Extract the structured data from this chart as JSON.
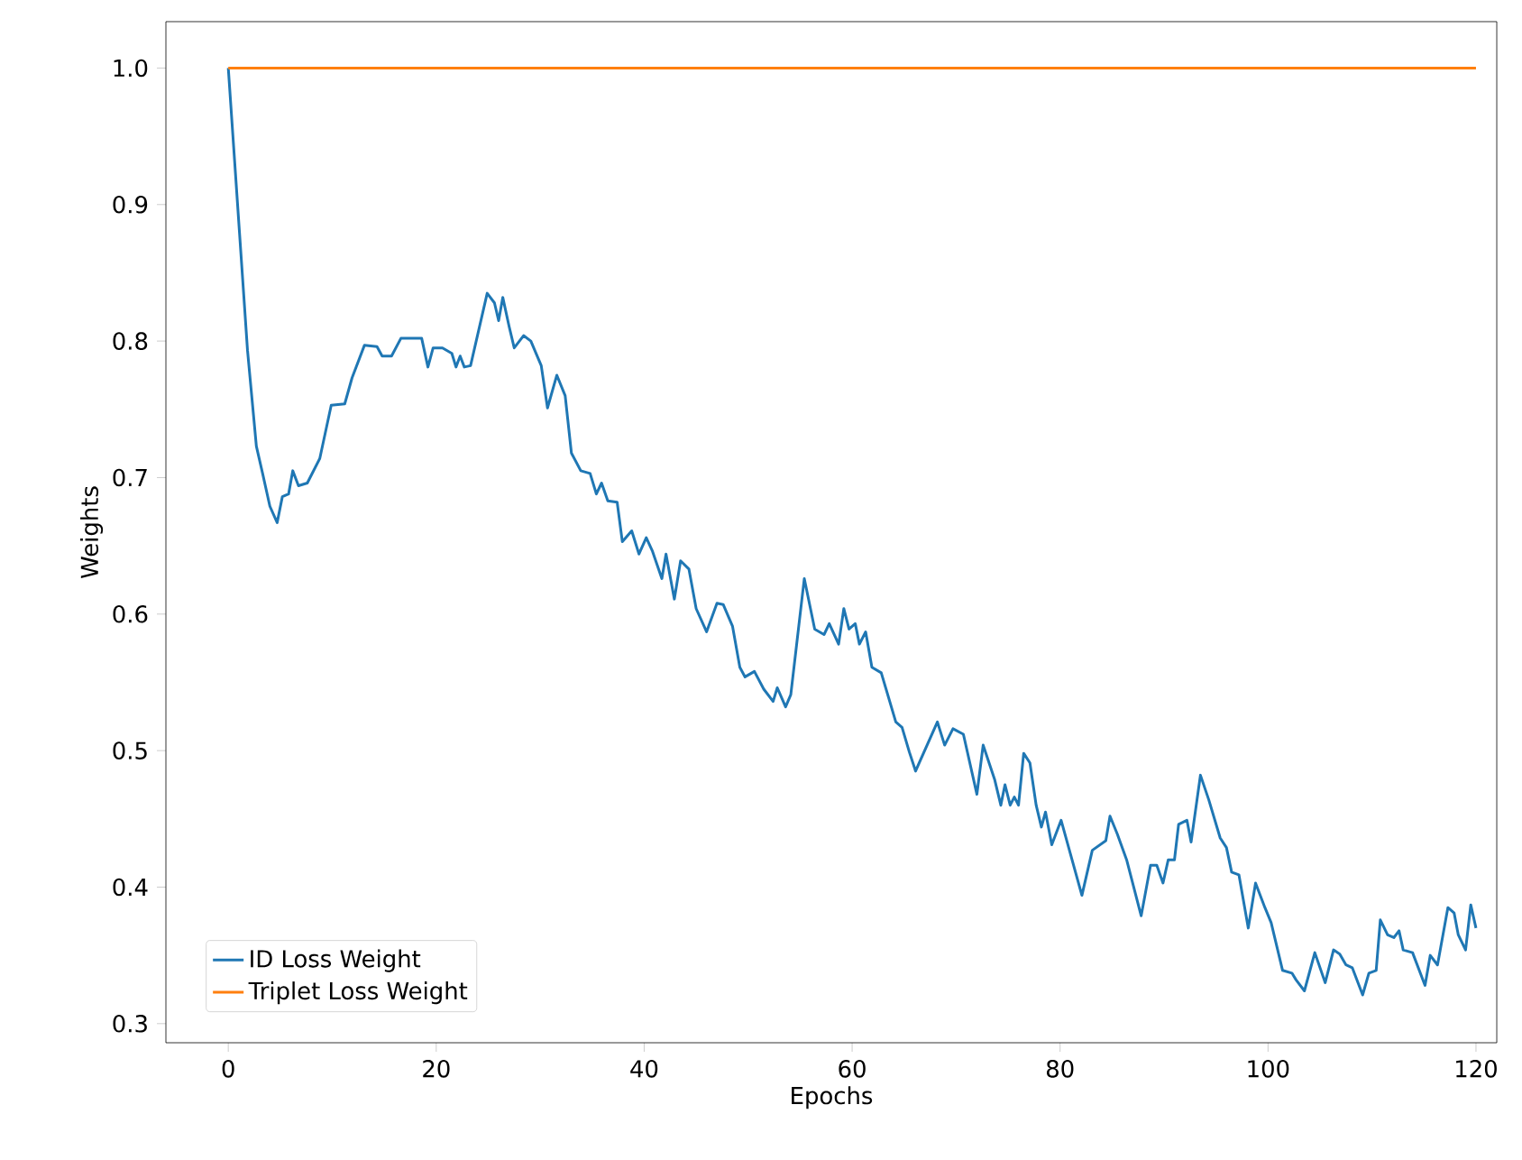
{
  "chart_data": {
    "type": "line",
    "xlabel": "Epochs",
    "ylabel": "Weights",
    "xlim": [
      -6,
      122
    ],
    "ylim": [
      0.286,
      1.034
    ],
    "xticks": [
      0,
      20,
      40,
      60,
      80,
      100,
      120
    ],
    "yticks": [
      {
        "value": 0.3,
        "label": "0.3"
      },
      {
        "value": 0.4,
        "label": "0.4"
      },
      {
        "value": 0.5,
        "label": "0.5"
      },
      {
        "value": 0.6,
        "label": "0.6"
      },
      {
        "value": 0.7,
        "label": "0.7"
      },
      {
        "value": 0.8,
        "label": "0.8"
      },
      {
        "value": 0.9,
        "label": "0.9"
      },
      {
        "value": 1.0,
        "label": "1.0"
      }
    ],
    "legend": "bottom left",
    "grid": false,
    "marker": "none",
    "line_style": "solid",
    "series": [
      {
        "name": "ID Loss Weight",
        "color": "#1f77b4",
        "x": [
          0,
          1.85,
          2.7,
          3.3,
          4.0,
          4.7,
          5.2,
          5.8,
          6.2,
          6.75,
          7.6,
          8.8,
          9.9,
          11.2,
          11.9,
          13.1,
          14.3,
          14.8,
          15.7,
          16.6,
          18.6,
          19.2,
          19.7,
          20.6,
          21.5,
          21.9,
          22.3,
          22.7,
          23.3,
          24.9,
          25.6,
          26.0,
          26.4,
          27.0,
          27.5,
          28.4,
          29.1,
          30.1,
          30.7,
          31.6,
          32.4,
          33.0,
          33.9,
          34.8,
          35.4,
          35.9,
          36.5,
          37.4,
          37.9,
          38.8,
          39.5,
          40.2,
          40.8,
          41.7,
          42.1,
          42.9,
          43.5,
          44.3,
          45.0,
          46.0,
          47.0,
          47.6,
          48.5,
          49.2,
          49.7,
          50.6,
          51.5,
          52.4,
          52.8,
          53.6,
          54.1,
          55.4,
          56.4,
          57.3,
          57.8,
          58.7,
          59.2,
          59.7,
          60.3,
          60.7,
          61.3,
          61.9,
          62.8,
          64.2,
          64.8,
          65.5,
          66.1,
          68.2,
          68.9,
          69.7,
          70.7,
          72.0,
          72.6,
          73.7,
          74.3,
          74.7,
          75.2,
          75.6,
          76.0,
          76.5,
          77.1,
          77.7,
          78.2,
          78.6,
          79.2,
          80.1,
          82.1,
          83.1,
          84.4,
          84.8,
          85.5,
          86.4,
          87.8,
          88.7,
          89.3,
          89.9,
          90.4,
          91.0,
          91.4,
          92.2,
          92.6,
          93.5,
          94.3,
          95.4,
          96.0,
          96.5,
          97.2,
          98.1,
          98.8,
          99.7,
          100.3,
          101.4,
          102.3,
          102.7,
          103.5,
          104.5,
          105.5,
          106.3,
          106.9,
          107.5,
          108.1,
          109.1,
          109.7,
          110.4,
          110.8,
          111.5,
          112.1,
          112.6,
          113.0,
          113.9,
          115.1,
          115.6,
          116.3,
          117.3,
          117.9,
          118.3,
          119.0,
          119.5,
          120.0
        ],
        "values": [
          1.0,
          0.793,
          0.723,
          0.703,
          0.679,
          0.667,
          0.686,
          0.688,
          0.705,
          0.694,
          0.696,
          0.714,
          0.753,
          0.754,
          0.773,
          0.797,
          0.796,
          0.789,
          0.789,
          0.802,
          0.802,
          0.781,
          0.795,
          0.795,
          0.791,
          0.781,
          0.789,
          0.781,
          0.782,
          0.835,
          0.828,
          0.815,
          0.832,
          0.811,
          0.795,
          0.804,
          0.8,
          0.782,
          0.751,
          0.775,
          0.76,
          0.718,
          0.705,
          0.703,
          0.688,
          0.696,
          0.683,
          0.682,
          0.653,
          0.661,
          0.644,
          0.656,
          0.646,
          0.626,
          0.644,
          0.611,
          0.639,
          0.633,
          0.604,
          0.587,
          0.608,
          0.607,
          0.591,
          0.561,
          0.554,
          0.558,
          0.545,
          0.536,
          0.546,
          0.532,
          0.541,
          0.626,
          0.589,
          0.585,
          0.593,
          0.578,
          0.604,
          0.589,
          0.593,
          0.578,
          0.587,
          0.561,
          0.557,
          0.521,
          0.517,
          0.499,
          0.485,
          0.521,
          0.504,
          0.516,
          0.512,
          0.468,
          0.504,
          0.479,
          0.46,
          0.475,
          0.46,
          0.466,
          0.46,
          0.498,
          0.491,
          0.46,
          0.444,
          0.455,
          0.431,
          0.449,
          0.394,
          0.427,
          0.434,
          0.452,
          0.439,
          0.42,
          0.379,
          0.416,
          0.416,
          0.403,
          0.42,
          0.42,
          0.446,
          0.449,
          0.433,
          0.482,
          0.464,
          0.436,
          0.429,
          0.411,
          0.409,
          0.37,
          0.403,
          0.385,
          0.374,
          0.339,
          0.337,
          0.332,
          0.324,
          0.352,
          0.33,
          0.354,
          0.351,
          0.343,
          0.341,
          0.321,
          0.337,
          0.339,
          0.376,
          0.365,
          0.363,
          0.368,
          0.354,
          0.352,
          0.328,
          0.35,
          0.343,
          0.385,
          0.381,
          0.365,
          0.354,
          0.387,
          0.37
        ]
      },
      {
        "name": "Triplet Loss Weight",
        "color": "#ff7f0e",
        "x": [
          0,
          120
        ],
        "values": [
          1.0,
          1.0
        ]
      }
    ]
  }
}
